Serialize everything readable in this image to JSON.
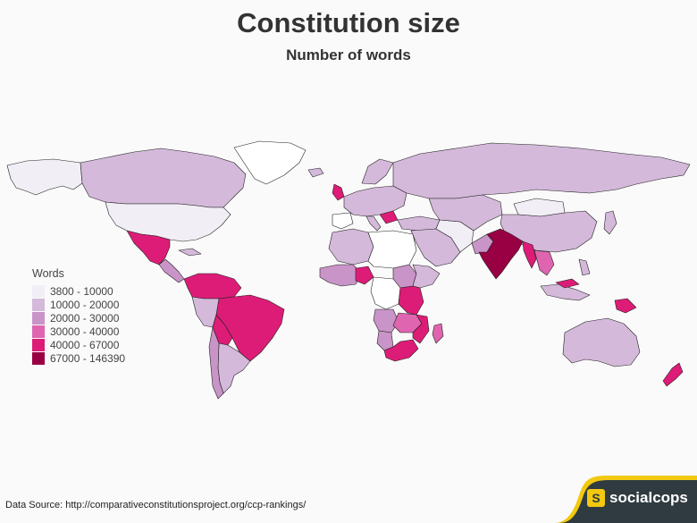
{
  "header": {
    "title": "Constitution size",
    "subtitle": "Number of words"
  },
  "legend": {
    "title": "Words",
    "items": [
      {
        "label": "3800 - 10000",
        "color": "#f1eef6"
      },
      {
        "label": "10000 - 20000",
        "color": "#d4b9da"
      },
      {
        "label": "20000 - 30000",
        "color": "#c994c7"
      },
      {
        "label": "30000 - 40000",
        "color": "#df65b0"
      },
      {
        "label": "40000 - 67000",
        "color": "#dd1c77"
      },
      {
        "label": "67000 - 146390",
        "color": "#980043"
      }
    ]
  },
  "map": {
    "unclassified_color": "#ffffff",
    "border_color": "#222222",
    "icons": [
      "world-map"
    ]
  },
  "footer": {
    "source": "Data Source: http://comparativeconstitutionsproject.org/ccp-rankings/",
    "brand_name": "socialcops",
    "brand_badge": "S",
    "brand_bg": "#2f3b40",
    "brand_accent": "#f2c811"
  }
}
